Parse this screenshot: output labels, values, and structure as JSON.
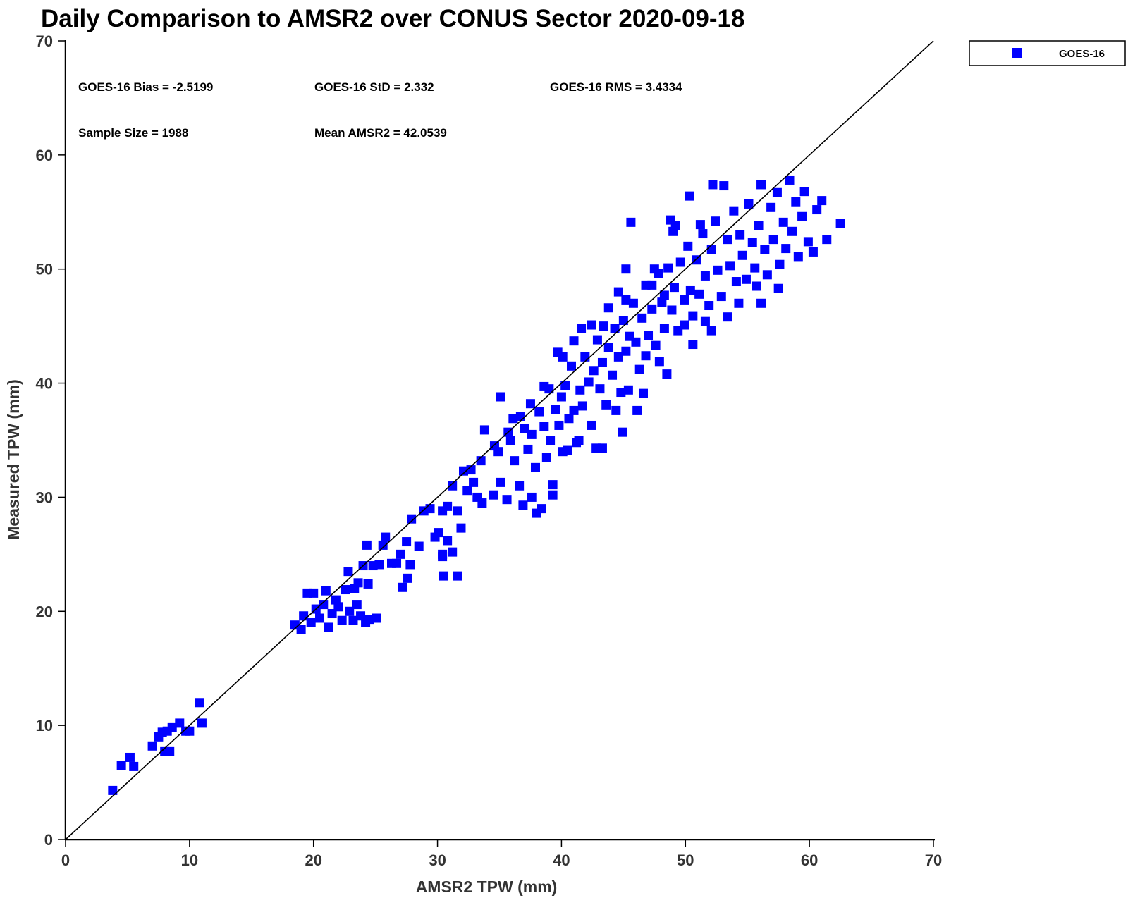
{
  "chart_data": {
    "type": "scatter",
    "title": "Daily Comparison to AMSR2 over CONUS Sector 2020-09-18",
    "xlabel": "AMSR2 TPW (mm)",
    "ylabel": "Measured TPW (mm)",
    "xlim": [
      0,
      70
    ],
    "ylim": [
      0,
      70
    ],
    "xticks": [
      0,
      10,
      20,
      30,
      40,
      50,
      60,
      70
    ],
    "yticks": [
      0,
      10,
      20,
      30,
      40,
      50,
      60,
      70
    ],
    "grid": false,
    "reference_line": {
      "name": "1:1 line",
      "x": [
        0,
        70
      ],
      "y": [
        0,
        70
      ]
    },
    "legend": {
      "position": "top-right",
      "entries": [
        "GOES-16"
      ]
    },
    "annotations": {
      "bias": "GOES-16 Bias = -2.5199",
      "std": "GOES-16 StD = 2.332",
      "rms": "GOES-16 RMS = 3.4334",
      "sample_size": "Sample Size = 1988",
      "mean": "Mean AMSR2 = 42.0539"
    },
    "series": [
      {
        "name": "GOES-16",
        "color": "#0000ff",
        "marker": "square",
        "points": [
          [
            3.8,
            4.3
          ],
          [
            4.5,
            6.5
          ],
          [
            5.2,
            7.2
          ],
          [
            5.5,
            6.4
          ],
          [
            7.0,
            8.2
          ],
          [
            7.5,
            9.0
          ],
          [
            7.8,
            9.4
          ],
          [
            8.0,
            7.7
          ],
          [
            8.2,
            9.5
          ],
          [
            8.6,
            9.8
          ],
          [
            8.4,
            7.7
          ],
          [
            9.2,
            10.2
          ],
          [
            9.7,
            9.5
          ],
          [
            10.0,
            9.5
          ],
          [
            10.8,
            12.0
          ],
          [
            11.0,
            10.2
          ],
          [
            18.5,
            18.8
          ],
          [
            19.0,
            18.4
          ],
          [
            19.2,
            19.6
          ],
          [
            19.5,
            21.6
          ],
          [
            19.8,
            19.0
          ],
          [
            20.0,
            21.6
          ],
          [
            20.2,
            20.2
          ],
          [
            20.5,
            19.4
          ],
          [
            20.8,
            20.6
          ],
          [
            21.0,
            21.8
          ],
          [
            21.2,
            18.6
          ],
          [
            21.5,
            19.8
          ],
          [
            21.8,
            21.0
          ],
          [
            22.0,
            20.4
          ],
          [
            22.3,
            19.2
          ],
          [
            22.6,
            21.9
          ],
          [
            22.9,
            20.0
          ],
          [
            23.2,
            19.2
          ],
          [
            23.5,
            20.6
          ],
          [
            23.8,
            19.6
          ],
          [
            24.2,
            19.0
          ],
          [
            24.5,
            19.3
          ],
          [
            25.1,
            19.4
          ],
          [
            22.8,
            23.5
          ],
          [
            23.3,
            22.0
          ],
          [
            23.6,
            22.5
          ],
          [
            24.0,
            24.0
          ],
          [
            24.4,
            22.4
          ],
          [
            24.3,
            25.8
          ],
          [
            24.8,
            24.0
          ],
          [
            25.3,
            24.1
          ],
          [
            25.6,
            25.8
          ],
          [
            25.8,
            26.5
          ],
          [
            26.3,
            24.2
          ],
          [
            26.7,
            24.2
          ],
          [
            27.0,
            25.0
          ],
          [
            27.5,
            26.1
          ],
          [
            27.2,
            22.1
          ],
          [
            27.6,
            22.9
          ],
          [
            27.8,
            24.1
          ],
          [
            27.9,
            28.1
          ],
          [
            28.5,
            25.7
          ],
          [
            28.9,
            28.8
          ],
          [
            29.4,
            29.0
          ],
          [
            29.8,
            26.5
          ],
          [
            30.1,
            26.9
          ],
          [
            30.4,
            25.0
          ],
          [
            30.4,
            24.8
          ],
          [
            30.5,
            23.1
          ],
          [
            30.8,
            26.2
          ],
          [
            31.2,
            25.2
          ],
          [
            31.6,
            23.1
          ],
          [
            30.4,
            28.8
          ],
          [
            30.8,
            29.2
          ],
          [
            31.2,
            31.0
          ],
          [
            31.6,
            28.8
          ],
          [
            31.9,
            27.3
          ],
          [
            32.1,
            32.3
          ],
          [
            32.4,
            30.6
          ],
          [
            32.9,
            31.3
          ],
          [
            33.2,
            30.0
          ],
          [
            33.6,
            29.5
          ],
          [
            33.8,
            35.9
          ],
          [
            34.5,
            30.2
          ],
          [
            34.9,
            34.0
          ],
          [
            35.1,
            31.3
          ],
          [
            35.6,
            29.8
          ],
          [
            35.9,
            35.0
          ],
          [
            36.2,
            33.2
          ],
          [
            36.6,
            31.0
          ],
          [
            36.9,
            29.3
          ],
          [
            37.0,
            36.0
          ],
          [
            37.3,
            34.2
          ],
          [
            37.6,
            35.5
          ],
          [
            37.9,
            32.6
          ],
          [
            38.2,
            37.5
          ],
          [
            38.4,
            29.0
          ],
          [
            38.6,
            36.2
          ],
          [
            38.8,
            33.5
          ],
          [
            39.0,
            39.5
          ],
          [
            39.1,
            35.0
          ],
          [
            39.3,
            31.1
          ],
          [
            39.5,
            37.7
          ],
          [
            39.8,
            36.3
          ],
          [
            40.0,
            38.8
          ],
          [
            40.1,
            34.0
          ],
          [
            40.3,
            39.8
          ],
          [
            40.6,
            36.9
          ],
          [
            40.8,
            41.5
          ],
          [
            41.0,
            37.6
          ],
          [
            41.2,
            34.8
          ],
          [
            41.5,
            39.4
          ],
          [
            41.7,
            38.0
          ],
          [
            41.9,
            42.3
          ],
          [
            42.2,
            40.1
          ],
          [
            42.4,
            36.3
          ],
          [
            42.6,
            41.1
          ],
          [
            42.9,
            43.8
          ],
          [
            43.1,
            39.5
          ],
          [
            43.3,
            41.8
          ],
          [
            43.6,
            38.1
          ],
          [
            43.8,
            43.1
          ],
          [
            44.1,
            40.7
          ],
          [
            44.3,
            44.8
          ],
          [
            44.6,
            42.3
          ],
          [
            44.8,
            39.2
          ],
          [
            45.0,
            45.5
          ],
          [
            45.2,
            42.8
          ],
          [
            45.5,
            44.1
          ],
          [
            45.8,
            47.0
          ],
          [
            46.0,
            43.6
          ],
          [
            46.3,
            41.2
          ],
          [
            46.5,
            45.7
          ],
          [
            46.8,
            48.6
          ],
          [
            47.0,
            44.2
          ],
          [
            47.3,
            46.5
          ],
          [
            47.6,
            43.3
          ],
          [
            47.8,
            49.6
          ],
          [
            48.1,
            47.1
          ],
          [
            48.3,
            44.8
          ],
          [
            48.6,
            50.1
          ],
          [
            48.9,
            46.4
          ],
          [
            49.1,
            48.4
          ],
          [
            49.4,
            44.6
          ],
          [
            49.6,
            50.6
          ],
          [
            49.9,
            47.3
          ],
          [
            50.2,
            52.0
          ],
          [
            50.4,
            48.1
          ],
          [
            50.6,
            45.9
          ],
          [
            50.9,
            50.8
          ],
          [
            51.1,
            47.8
          ],
          [
            51.4,
            53.1
          ],
          [
            51.6,
            49.4
          ],
          [
            51.9,
            46.8
          ],
          [
            52.1,
            51.7
          ],
          [
            52.4,
            54.2
          ],
          [
            52.6,
            49.9
          ],
          [
            52.9,
            47.6
          ],
          [
            53.1,
            57.3
          ],
          [
            53.4,
            52.6
          ],
          [
            53.6,
            50.3
          ],
          [
            53.9,
            55.1
          ],
          [
            54.1,
            48.9
          ],
          [
            54.4,
            53.0
          ],
          [
            54.6,
            51.2
          ],
          [
            54.9,
            49.1
          ],
          [
            55.1,
            55.7
          ],
          [
            55.4,
            52.3
          ],
          [
            55.6,
            50.1
          ],
          [
            55.9,
            53.8
          ],
          [
            56.1,
            57.4
          ],
          [
            56.4,
            51.7
          ],
          [
            56.6,
            49.5
          ],
          [
            56.9,
            55.4
          ],
          [
            57.1,
            52.6
          ],
          [
            57.4,
            56.7
          ],
          [
            57.6,
            50.4
          ],
          [
            57.9,
            54.1
          ],
          [
            58.1,
            51.8
          ],
          [
            58.4,
            57.8
          ],
          [
            58.6,
            53.3
          ],
          [
            58.9,
            55.9
          ],
          [
            59.1,
            51.1
          ],
          [
            59.4,
            54.6
          ],
          [
            59.6,
            56.8
          ],
          [
            59.9,
            52.4
          ],
          [
            60.3,
            51.5
          ],
          [
            60.6,
            55.2
          ],
          [
            61.0,
            56.0
          ],
          [
            61.4,
            52.6
          ],
          [
            62.5,
            54.0
          ],
          [
            41.6,
            44.8
          ],
          [
            43.4,
            45.0
          ],
          [
            45.2,
            50.0
          ],
          [
            47.5,
            50.0
          ],
          [
            46.8,
            42.4
          ],
          [
            50.3,
            56.4
          ],
          [
            52.2,
            57.4
          ],
          [
            44.4,
            37.6
          ],
          [
            45.4,
            39.4
          ],
          [
            46.1,
            37.6
          ],
          [
            44.9,
            35.7
          ],
          [
            43.3,
            34.3
          ],
          [
            42.8,
            34.3
          ],
          [
            41.4,
            35.0
          ],
          [
            40.5,
            34.1
          ],
          [
            39.3,
            30.2
          ],
          [
            37.6,
            30.0
          ],
          [
            36.1,
            36.9
          ],
          [
            35.1,
            38.8
          ],
          [
            38.0,
            28.6
          ],
          [
            39.7,
            42.7
          ],
          [
            49.2,
            53.8
          ],
          [
            49.0,
            53.3
          ],
          [
            48.8,
            54.3
          ],
          [
            51.2,
            53.9
          ],
          [
            51.6,
            45.4
          ],
          [
            53.4,
            45.8
          ],
          [
            52.1,
            44.6
          ],
          [
            54.3,
            47.0
          ],
          [
            55.7,
            48.5
          ],
          [
            56.1,
            47.0
          ],
          [
            57.5,
            48.3
          ],
          [
            45.6,
            54.1
          ],
          [
            47.3,
            48.6
          ],
          [
            48.3,
            47.7
          ],
          [
            49.9,
            45.1
          ],
          [
            50.6,
            43.4
          ],
          [
            47.9,
            41.9
          ],
          [
            48.5,
            40.8
          ],
          [
            46.6,
            39.1
          ],
          [
            45.2,
            47.3
          ],
          [
            43.8,
            46.6
          ],
          [
            44.6,
            48.0
          ],
          [
            42.4,
            45.1
          ],
          [
            41.0,
            43.7
          ],
          [
            40.1,
            42.3
          ],
          [
            38.6,
            39.7
          ],
          [
            37.5,
            38.2
          ],
          [
            36.7,
            37.1
          ],
          [
            35.7,
            35.7
          ],
          [
            34.6,
            34.5
          ],
          [
            33.5,
            33.2
          ],
          [
            32.7,
            32.4
          ]
        ]
      }
    ]
  }
}
